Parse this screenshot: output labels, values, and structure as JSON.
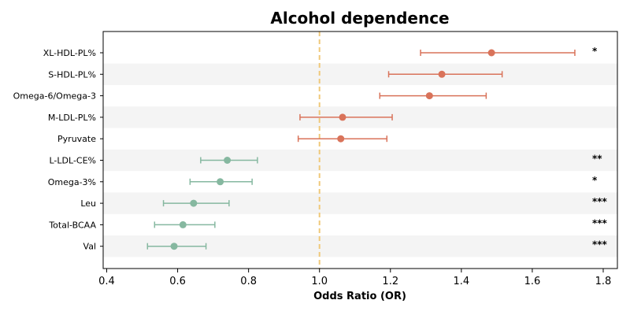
{
  "chart_data": {
    "type": "forest",
    "title": "Alcohol dependence",
    "xlabel": "Odds Ratio (OR)",
    "xlim": [
      0.39,
      1.84
    ],
    "xticks": [
      "0.4",
      "0.6",
      "0.8",
      "1.0",
      "1.2",
      "1.4",
      "1.6",
      "1.8"
    ],
    "reference_line": 1.0,
    "colors": {
      "positive": "#d9735a",
      "negative": "#86b8a0",
      "reference": "#f0c97a",
      "band": "#f4f4f4"
    },
    "rows": [
      {
        "label": "XL-HDL-PL%",
        "or": 1.485,
        "lo": 1.285,
        "hi": 1.72,
        "sig": "*"
      },
      {
        "label": "S-HDL-PL%",
        "or": 1.345,
        "lo": 1.195,
        "hi": 1.515,
        "sig": ""
      },
      {
        "label": "Omega-6/Omega-3",
        "or": 1.31,
        "lo": 1.17,
        "hi": 1.47,
        "sig": ""
      },
      {
        "label": "M-LDL-PL%",
        "or": 1.065,
        "lo": 0.945,
        "hi": 1.205,
        "sig": ""
      },
      {
        "label": "Pyruvate",
        "or": 1.06,
        "lo": 0.94,
        "hi": 1.19,
        "sig": ""
      },
      {
        "label": "L-LDL-CE%",
        "or": 0.74,
        "lo": 0.665,
        "hi": 0.825,
        "sig": "**"
      },
      {
        "label": "Omega-3%",
        "or": 0.72,
        "lo": 0.635,
        "hi": 0.81,
        "sig": "*"
      },
      {
        "label": "Leu",
        "or": 0.645,
        "lo": 0.56,
        "hi": 0.745,
        "sig": "***"
      },
      {
        "label": "Total-BCAA",
        "or": 0.615,
        "lo": 0.535,
        "hi": 0.705,
        "sig": "***"
      },
      {
        "label": "Val",
        "or": 0.59,
        "lo": 0.515,
        "hi": 0.68,
        "sig": "***"
      }
    ]
  }
}
